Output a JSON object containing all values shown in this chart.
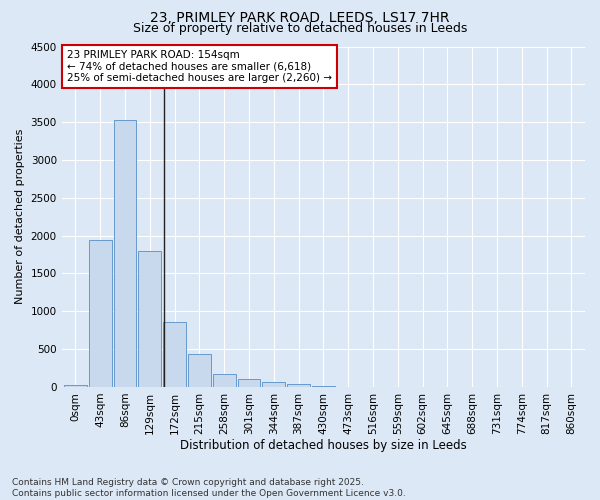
{
  "title_line1": "23, PRIMLEY PARK ROAD, LEEDS, LS17 7HR",
  "title_line2": "Size of property relative to detached houses in Leeds",
  "xlabel": "Distribution of detached houses by size in Leeds",
  "ylabel": "Number of detached properties",
  "bar_labels": [
    "0sqm",
    "43sqm",
    "86sqm",
    "129sqm",
    "172sqm",
    "215sqm",
    "258sqm",
    "301sqm",
    "344sqm",
    "387sqm",
    "430sqm",
    "473sqm",
    "516sqm",
    "559sqm",
    "602sqm",
    "645sqm",
    "688sqm",
    "731sqm",
    "774sqm",
    "817sqm",
    "860sqm"
  ],
  "bar_values": [
    30,
    1940,
    3530,
    1800,
    860,
    440,
    175,
    110,
    65,
    35,
    8,
    4,
    2,
    1,
    0,
    0,
    0,
    0,
    0,
    0,
    0
  ],
  "bar_color": "#c9d9ed",
  "bar_edge_color": "#6699cc",
  "vline_x": 3.58,
  "vline_color": "#222222",
  "ylim": [
    0,
    4500
  ],
  "yticks": [
    0,
    500,
    1000,
    1500,
    2000,
    2500,
    3000,
    3500,
    4000,
    4500
  ],
  "annotation_text": "23 PRIMLEY PARK ROAD: 154sqm\n← 74% of detached houses are smaller (6,618)\n25% of semi-detached houses are larger (2,260) →",
  "annotation_box_facecolor": "#ffffff",
  "annotation_box_edgecolor": "#cc0000",
  "footnote": "Contains HM Land Registry data © Crown copyright and database right 2025.\nContains public sector information licensed under the Open Government Licence v3.0.",
  "background_color": "#dce8f5",
  "axes_background_color": "#dce8f5",
  "grid_color": "#ffffff",
  "title1_fontsize": 10,
  "title2_fontsize": 9,
  "xlabel_fontsize": 8.5,
  "ylabel_fontsize": 8,
  "tick_fontsize": 7.5,
  "annot_fontsize": 7.5,
  "footnote_fontsize": 6.5
}
